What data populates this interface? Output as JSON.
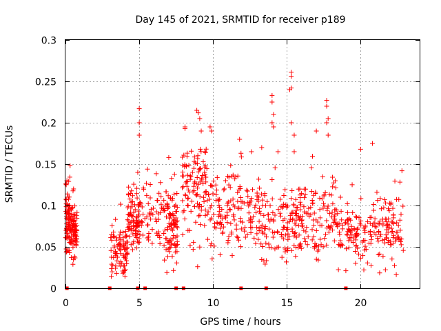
{
  "chart_data": {
    "type": "scatter",
    "title": "Day 145 of 2021, SRMTID for receiver p189",
    "xlabel": "GPS time / hours",
    "ylabel": "SRMTID / TECUs",
    "xlim": [
      0,
      24
    ],
    "ylim": [
      0,
      0.3
    ],
    "xticks": [
      0,
      5,
      10,
      15,
      20
    ],
    "xtick_labels": [
      "0",
      "5",
      "10",
      "15",
      "20"
    ],
    "yticks": [
      0,
      0.05,
      0.1,
      0.15,
      0.2,
      0.25,
      0.3
    ],
    "ytick_labels": [
      "0",
      "0.05",
      "0.1",
      "0.15",
      "0.2",
      "0.25",
      "0.3"
    ],
    "grid": true,
    "marker": "+",
    "color": "#ff0000",
    "zero_markers_x": [
      0.1,
      3.0,
      4.9,
      5.4,
      7.5,
      8.0,
      11.9,
      13.6,
      19.0
    ],
    "clusters": [
      {
        "x": [
          0.0,
          0.35
        ],
        "mean": 0.085,
        "sd": 0.02,
        "density": 70
      },
      {
        "x": [
          0.35,
          0.8
        ],
        "mean": 0.072,
        "sd": 0.018,
        "density": 80
      },
      {
        "x": [
          3.05,
          4.2
        ],
        "mean": 0.045,
        "sd": 0.016,
        "density": 90
      },
      {
        "x": [
          4.2,
          5.0
        ],
        "mean": 0.08,
        "sd": 0.02,
        "density": 90
      },
      {
        "x": [
          5.0,
          7.6
        ],
        "mean": 0.09,
        "sd": 0.022,
        "density": 95
      },
      {
        "x": [
          6.8,
          7.6
        ],
        "mean": 0.07,
        "sd": 0.02,
        "density": 60
      },
      {
        "x": [
          7.9,
          9.6
        ],
        "mean": 0.125,
        "sd": 0.03,
        "density": 110
      },
      {
        "x": [
          9.6,
          12.0
        ],
        "mean": 0.095,
        "sd": 0.025,
        "density": 110
      },
      {
        "x": [
          12.0,
          14.6
        ],
        "mean": 0.085,
        "sd": 0.025,
        "density": 100
      },
      {
        "x": [
          14.6,
          16.2
        ],
        "mean": 0.075,
        "sd": 0.022,
        "density": 100
      },
      {
        "x": [
          16.2,
          18.5
        ],
        "mean": 0.085,
        "sd": 0.025,
        "density": 100
      },
      {
        "x": [
          18.5,
          20.8
        ],
        "mean": 0.065,
        "sd": 0.018,
        "density": 100
      },
      {
        "x": [
          20.8,
          22.9
        ],
        "mean": 0.07,
        "sd": 0.02,
        "density": 100
      }
    ],
    "highlights": [
      {
        "x": 0.1,
        "y": 0.13
      },
      {
        "x": 0.55,
        "y": 0.12
      },
      {
        "x": 4.9,
        "y": 0.14
      },
      {
        "x": 5.0,
        "y": 0.217
      },
      {
        "x": 5.0,
        "y": 0.2
      },
      {
        "x": 5.0,
        "y": 0.185
      },
      {
        "x": 7.0,
        "y": 0.158
      },
      {
        "x": 8.1,
        "y": 0.195
      },
      {
        "x": 8.1,
        "y": 0.193
      },
      {
        "x": 8.9,
        "y": 0.215
      },
      {
        "x": 9.0,
        "y": 0.212
      },
      {
        "x": 9.1,
        "y": 0.205
      },
      {
        "x": 9.2,
        "y": 0.19
      },
      {
        "x": 9.8,
        "y": 0.195
      },
      {
        "x": 9.9,
        "y": 0.19
      },
      {
        "x": 11.8,
        "y": 0.18
      },
      {
        "x": 12.6,
        "y": 0.165
      },
      {
        "x": 13.3,
        "y": 0.17
      },
      {
        "x": 14.0,
        "y": 0.233
      },
      {
        "x": 14.0,
        "y": 0.225
      },
      {
        "x": 14.1,
        "y": 0.21
      },
      {
        "x": 14.0,
        "y": 0.2
      },
      {
        "x": 14.1,
        "y": 0.195
      },
      {
        "x": 14.4,
        "y": 0.165
      },
      {
        "x": 15.3,
        "y": 0.261
      },
      {
        "x": 15.3,
        "y": 0.256
      },
      {
        "x": 15.3,
        "y": 0.242
      },
      {
        "x": 15.2,
        "y": 0.24
      },
      {
        "x": 15.3,
        "y": 0.2
      },
      {
        "x": 15.5,
        "y": 0.185
      },
      {
        "x": 15.5,
        "y": 0.165
      },
      {
        "x": 17.0,
        "y": 0.19
      },
      {
        "x": 17.7,
        "y": 0.227
      },
      {
        "x": 17.7,
        "y": 0.22
      },
      {
        "x": 17.8,
        "y": 0.205
      },
      {
        "x": 17.7,
        "y": 0.2
      },
      {
        "x": 17.8,
        "y": 0.185
      },
      {
        "x": 20.0,
        "y": 0.168
      },
      {
        "x": 20.8,
        "y": 0.175
      },
      {
        "x": 22.8,
        "y": 0.142
      }
    ]
  }
}
